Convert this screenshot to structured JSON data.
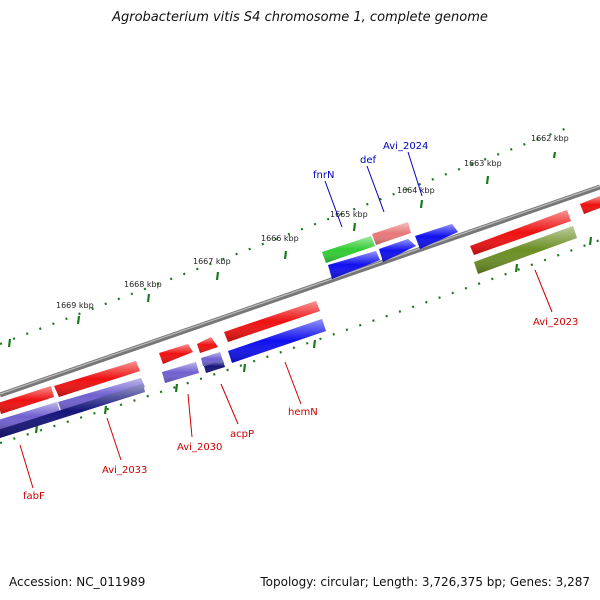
{
  "title": "Agrobacterium vitis S4 chromosome 1, complete genome",
  "footer": {
    "accession": "Accession: NC_011989",
    "stats": "Topology: circular; Length: 3,726,375 bp; Genes: 3,287"
  },
  "colors": {
    "backbone": "#888888",
    "tick": "#1a7a1a",
    "red": "#ee1111",
    "pink": "#e87878",
    "green": "#33cc33",
    "olive": "#6b8e23",
    "blue": "#1010ee",
    "lightpurple": "#7060d0",
    "navy": "#14147a",
    "red_label": "#cc0000",
    "blue_label": "#0000bb"
  },
  "scale_labels": [
    "1662 kbp",
    "1663 kbp",
    "1664 kbp",
    "1665 kbp",
    "1666 kbp",
    "1667 kbp",
    "1668 kbp",
    "1669 kbp"
  ],
  "gene_labels": {
    "avi_2024": "Avi_2024",
    "def": "def",
    "fnrN": "fnrN",
    "avi_2023": "Avi_2023",
    "hemN": "hemN",
    "acpP": "acpP",
    "avi_2030": "Avi_2030",
    "avi_2033": "Avi_2033",
    "fabF": "fabF"
  }
}
